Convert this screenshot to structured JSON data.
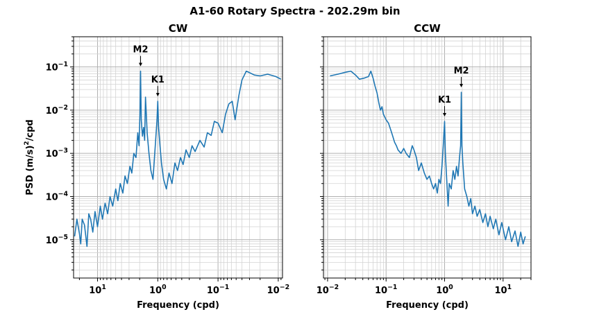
{
  "figure": {
    "title": "A1-60 Rotary Spectra - 202.29m bin",
    "line_color": "#1f77b4",
    "grid": true,
    "y_scale": "log",
    "x_scale": "log"
  },
  "chart_data": [
    {
      "type": "line",
      "title": "CW",
      "xlabel": "Frequency (cpd)",
      "ylabel": "PSD (m/s)²/cpd",
      "ylabel_base": "PSD (m/s)",
      "ylabel_sup": "2",
      "ylabel_tail": "/cpd",
      "x_axis_reversed": true,
      "xlim": [
        25,
        0.0085
      ],
      "ylim": [
        1.3e-06,
        0.5
      ],
      "x_ticks": [
        10,
        1,
        0.1,
        0.01
      ],
      "x_tick_labels": [
        {
          "base": "10",
          "exp": "1"
        },
        {
          "base": "10",
          "exp": "0"
        },
        {
          "base": "10",
          "exp": "−1"
        },
        {
          "base": "10",
          "exp": "−2"
        }
      ],
      "y_ticks": [
        1e-05,
        0.0001,
        0.001,
        0.01,
        0.1
      ],
      "y_tick_labels": [
        {
          "base": "10",
          "exp": "−5"
        },
        {
          "base": "10",
          "exp": "−4"
        },
        {
          "base": "10",
          "exp": "−3"
        },
        {
          "base": "10",
          "exp": "−2"
        },
        {
          "base": "10",
          "exp": "−1"
        }
      ],
      "annotations": [
        {
          "text": "M2",
          "x": 1.93,
          "y": 0.08
        },
        {
          "text": "K1",
          "x": 1.0,
          "y": 0.016
        }
      ],
      "series": [
        {
          "points": [
            [
              24.0,
              1.2e-05
            ],
            [
              22.0,
              3e-05
            ],
            [
              20.0,
              1.4e-05
            ],
            [
              19.0,
              8e-06
            ],
            [
              18.0,
              3e-05
            ],
            [
              16.5,
              2.2e-05
            ],
            [
              15.0,
              7e-06
            ],
            [
              14.0,
              4e-05
            ],
            [
              13.0,
              3e-05
            ],
            [
              12.0,
              1.5e-05
            ],
            [
              11.0,
              4.5e-05
            ],
            [
              10.0,
              2e-05
            ],
            [
              9.0,
              6e-05
            ],
            [
              8.3,
              3e-05
            ],
            [
              7.5,
              7e-05
            ],
            [
              6.8,
              4e-05
            ],
            [
              6.2,
              0.0001
            ],
            [
              5.6,
              6e-05
            ],
            [
              5.0,
              0.00015
            ],
            [
              4.6,
              8e-05
            ],
            [
              4.2,
              0.0002
            ],
            [
              3.8,
              0.00012
            ],
            [
              3.5,
              0.0003
            ],
            [
              3.2,
              0.0002
            ],
            [
              2.9,
              0.0005
            ],
            [
              2.7,
              0.00035
            ],
            [
              2.5,
              0.001
            ],
            [
              2.3,
              0.0008
            ],
            [
              2.15,
              0.003
            ],
            [
              2.05,
              0.0015
            ],
            [
              1.98,
              0.008
            ],
            [
              1.93,
              0.08
            ],
            [
              1.88,
              0.006
            ],
            [
              1.8,
              0.0025
            ],
            [
              1.72,
              0.004
            ],
            [
              1.65,
              0.002
            ],
            [
              1.6,
              0.02
            ],
            [
              1.55,
              0.008
            ],
            [
              1.5,
              0.003
            ],
            [
              1.4,
              0.001
            ],
            [
              1.3,
              0.0004
            ],
            [
              1.2,
              0.00025
            ],
            [
              1.1,
              0.0015
            ],
            [
              1.03,
              0.006
            ],
            [
              1.0,
              0.016
            ],
            [
              0.97,
              0.004
            ],
            [
              0.92,
              0.0015
            ],
            [
              0.87,
              0.0006
            ],
            [
              0.8,
              0.00025
            ],
            [
              0.72,
              0.00015
            ],
            [
              0.65,
              0.00035
            ],
            [
              0.58,
              0.0002
            ],
            [
              0.52,
              0.0006
            ],
            [
              0.47,
              0.0004
            ],
            [
              0.42,
              0.0008
            ],
            [
              0.38,
              0.00055
            ],
            [
              0.34,
              0.0012
            ],
            [
              0.3,
              0.0008
            ],
            [
              0.27,
              0.0015
            ],
            [
              0.24,
              0.0011
            ],
            [
              0.2,
              0.002
            ],
            [
              0.17,
              0.0014
            ],
            [
              0.15,
              0.003
            ],
            [
              0.13,
              0.0026
            ],
            [
              0.115,
              0.0055
            ],
            [
              0.1,
              0.005
            ],
            [
              0.085,
              0.003
            ],
            [
              0.075,
              0.008
            ],
            [
              0.066,
              0.014
            ],
            [
              0.058,
              0.016
            ],
            [
              0.052,
              0.006
            ],
            [
              0.045,
              0.022
            ],
            [
              0.04,
              0.05
            ],
            [
              0.034,
              0.08
            ],
            [
              0.029,
              0.072
            ],
            [
              0.025,
              0.065
            ],
            [
              0.02,
              0.062
            ],
            [
              0.015,
              0.068
            ],
            [
              0.011,
              0.06
            ],
            [
              0.009,
              0.052
            ]
          ]
        }
      ]
    },
    {
      "type": "line",
      "title": "CCW",
      "xlabel": "Frequency (cpd)",
      "x_axis_reversed": false,
      "xlim": [
        0.0085,
        30
      ],
      "ylim": [
        1.3e-06,
        0.5
      ],
      "x_ticks": [
        0.01,
        0.1,
        1,
        10
      ],
      "x_tick_labels": [
        {
          "base": "10",
          "exp": "−2"
        },
        {
          "base": "10",
          "exp": "−1"
        },
        {
          "base": "10",
          "exp": "0"
        },
        {
          "base": "10",
          "exp": "1"
        }
      ],
      "annotations": [
        {
          "text": "K1",
          "x": 1.0,
          "y": 0.0055
        },
        {
          "text": "M2",
          "x": 1.93,
          "y": 0.026
        }
      ],
      "series": [
        {
          "points": [
            [
              0.011,
              0.062
            ],
            [
              0.015,
              0.068
            ],
            [
              0.02,
              0.075
            ],
            [
              0.025,
              0.08
            ],
            [
              0.03,
              0.065
            ],
            [
              0.035,
              0.052
            ],
            [
              0.042,
              0.055
            ],
            [
              0.05,
              0.06
            ],
            [
              0.055,
              0.08
            ],
            [
              0.06,
              0.055
            ],
            [
              0.065,
              0.035
            ],
            [
              0.07,
              0.025
            ],
            [
              0.075,
              0.015
            ],
            [
              0.08,
              0.01
            ],
            [
              0.085,
              0.012
            ],
            [
              0.09,
              0.008
            ],
            [
              0.1,
              0.006
            ],
            [
              0.11,
              0.005
            ],
            [
              0.12,
              0.0035
            ],
            [
              0.13,
              0.0025
            ],
            [
              0.14,
              0.0018
            ],
            [
              0.15,
              0.0015
            ],
            [
              0.16,
              0.0012
            ],
            [
              0.18,
              0.001
            ],
            [
              0.2,
              0.0013
            ],
            [
              0.22,
              0.001
            ],
            [
              0.25,
              0.0008
            ],
            [
              0.28,
              0.0015
            ],
            [
              0.3,
              0.0012
            ],
            [
              0.33,
              0.0008
            ],
            [
              0.36,
              0.0004
            ],
            [
              0.4,
              0.0006
            ],
            [
              0.45,
              0.00035
            ],
            [
              0.5,
              0.00025
            ],
            [
              0.55,
              0.0003
            ],
            [
              0.6,
              0.0002
            ],
            [
              0.65,
              0.00015
            ],
            [
              0.7,
              0.0002
            ],
            [
              0.75,
              0.00012
            ],
            [
              0.8,
              0.00025
            ],
            [
              0.85,
              0.0002
            ],
            [
              0.9,
              0.0005
            ],
            [
              0.95,
              0.0015
            ],
            [
              1.0,
              0.0055
            ],
            [
              1.03,
              0.001
            ],
            [
              1.08,
              0.0003
            ],
            [
              1.15,
              6e-05
            ],
            [
              1.2,
              0.0002
            ],
            [
              1.3,
              0.00015
            ],
            [
              1.4,
              0.0004
            ],
            [
              1.5,
              0.00025
            ],
            [
              1.6,
              0.0005
            ],
            [
              1.7,
              0.0003
            ],
            [
              1.8,
              0.0008
            ],
            [
              1.88,
              0.0015
            ],
            [
              1.93,
              0.026
            ],
            [
              1.98,
              0.0015
            ],
            [
              2.05,
              0.0006
            ],
            [
              2.2,
              0.00015
            ],
            [
              2.4,
              0.0001
            ],
            [
              2.6,
              6e-05
            ],
            [
              2.8,
              9e-05
            ],
            [
              3.0,
              4e-05
            ],
            [
              3.3,
              6e-05
            ],
            [
              3.6,
              3.5e-05
            ],
            [
              4.0,
              5e-05
            ],
            [
              4.5,
              2.5e-05
            ],
            [
              5.0,
              4e-05
            ],
            [
              5.5,
              2e-05
            ],
            [
              6.0,
              3.5e-05
            ],
            [
              6.8,
              1.8e-05
            ],
            [
              7.5,
              3e-05
            ],
            [
              8.5,
              1.3e-05
            ],
            [
              9.5,
              2.5e-05
            ],
            [
              11.0,
              1e-05
            ],
            [
              12.5,
              2e-05
            ],
            [
              14.0,
              9e-06
            ],
            [
              16.0,
              1.6e-05
            ],
            [
              18.0,
              7e-06
            ],
            [
              20.0,
              1.5e-05
            ],
            [
              22.0,
              8e-06
            ],
            [
              24.0,
              1.2e-05
            ]
          ]
        }
      ]
    }
  ]
}
